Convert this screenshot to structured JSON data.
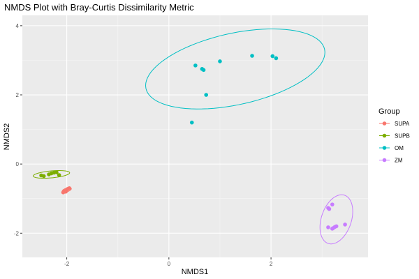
{
  "chart_data": {
    "type": "scatter",
    "title": "NMDS Plot with Bray-Curtis Dissimilarity Metric",
    "xlabel": "NMDS1",
    "ylabel": "NMDS2",
    "xlim": [
      -2.87,
      3.9
    ],
    "ylim": [
      -2.7,
      4.3
    ],
    "x_ticks": [
      -2,
      0,
      2
    ],
    "y_ticks": [
      -2,
      0,
      2,
      4
    ],
    "grid": true,
    "legend_position": "right",
    "legend_title": "Group",
    "series": [
      {
        "name": "SUPA",
        "color": "#F8766D",
        "points": [
          [
            -2.05,
            -0.78
          ],
          [
            -2.0,
            -0.75
          ],
          [
            -1.98,
            -0.72
          ],
          [
            -2.02,
            -0.8
          ],
          [
            -1.95,
            -0.7
          ],
          [
            -2.07,
            -0.82
          ]
        ],
        "ellipse": {
          "cx": -2.0,
          "cy": -0.75,
          "rx": 0.1,
          "ry": 0.05,
          "angle_deg": 30
        }
      },
      {
        "name": "SUPB",
        "color": "#7CAE00",
        "points": [
          [
            -2.45,
            -0.35
          ],
          [
            -2.35,
            -0.3
          ],
          [
            -2.3,
            -0.27
          ],
          [
            -2.25,
            -0.25
          ],
          [
            -2.15,
            -0.32
          ],
          [
            -2.5,
            -0.33
          ],
          [
            -2.2,
            -0.24
          ]
        ],
        "ellipse": {
          "cx": -2.3,
          "cy": -0.3,
          "rx": 0.36,
          "ry": 0.1,
          "angle_deg": 8
        }
      },
      {
        "name": "OM",
        "color": "#00BFC4",
        "points": [
          [
            0.45,
            1.2
          ],
          [
            0.52,
            2.85
          ],
          [
            0.65,
            2.75
          ],
          [
            0.68,
            2.72
          ],
          [
            0.73,
            2.0
          ],
          [
            1.0,
            2.97
          ],
          [
            1.63,
            3.13
          ],
          [
            2.03,
            3.12
          ],
          [
            2.1,
            3.06
          ]
        ],
        "ellipse": {
          "cx": 1.3,
          "cy": 2.75,
          "rx": 1.85,
          "ry": 1.0,
          "angle_deg": 22
        }
      },
      {
        "name": "ZM",
        "color": "#C77CFF",
        "points": [
          [
            3.12,
            -1.27
          ],
          [
            3.14,
            -1.3
          ],
          [
            3.2,
            -1.17
          ],
          [
            3.12,
            -1.83
          ],
          [
            3.2,
            -1.87
          ],
          [
            3.25,
            -1.82
          ],
          [
            3.28,
            -1.8
          ],
          [
            3.45,
            -1.75
          ],
          [
            3.22,
            -1.85
          ]
        ],
        "ellipse": {
          "cx": 3.28,
          "cy": -1.6,
          "rx": 0.3,
          "ry": 0.72,
          "angle_deg": -10
        }
      }
    ]
  }
}
